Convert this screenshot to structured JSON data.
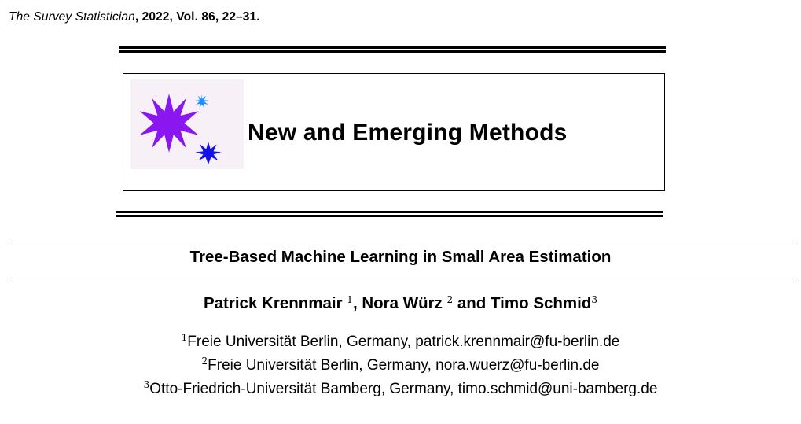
{
  "header": {
    "journal_name": "The Survey Statistician",
    "journal_details": ", 2022, Vol. 86, 22–31."
  },
  "banner": {
    "title": "New and Emerging Methods",
    "logo_icons": [
      "large-violet-star-icon",
      "small-cyan-star-icon",
      "blue-star-icon"
    ],
    "colors": {
      "violet_star": "#8a16f0",
      "cyan_star": "#1e90ff",
      "blue_star": "#1313e8",
      "logo_bg": "#f7f0f7"
    }
  },
  "paper": {
    "title": "Tree-Based Machine Learning in Small Area Estimation"
  },
  "authors": [
    {
      "name": "Patrick Krennmair",
      "sup": "1",
      "separator_after": ", "
    },
    {
      "name": "Nora Würz",
      "sup": "2",
      "separator_after": " and "
    },
    {
      "name": "Timo Schmid",
      "sup": "3",
      "separator_after": ""
    }
  ],
  "affiliations": [
    {
      "sup": "1",
      "text": "Freie Universität Berlin, Germany, patrick.krennmair@fu-berlin.de"
    },
    {
      "sup": "2",
      "text": "Freie Universität Berlin, Germany, nora.wuerz@fu-berlin.de"
    },
    {
      "sup": "3",
      "text": "Otto-Friedrich-Universität Bamberg, Germany, timo.schmid@uni-bamberg.de"
    }
  ]
}
